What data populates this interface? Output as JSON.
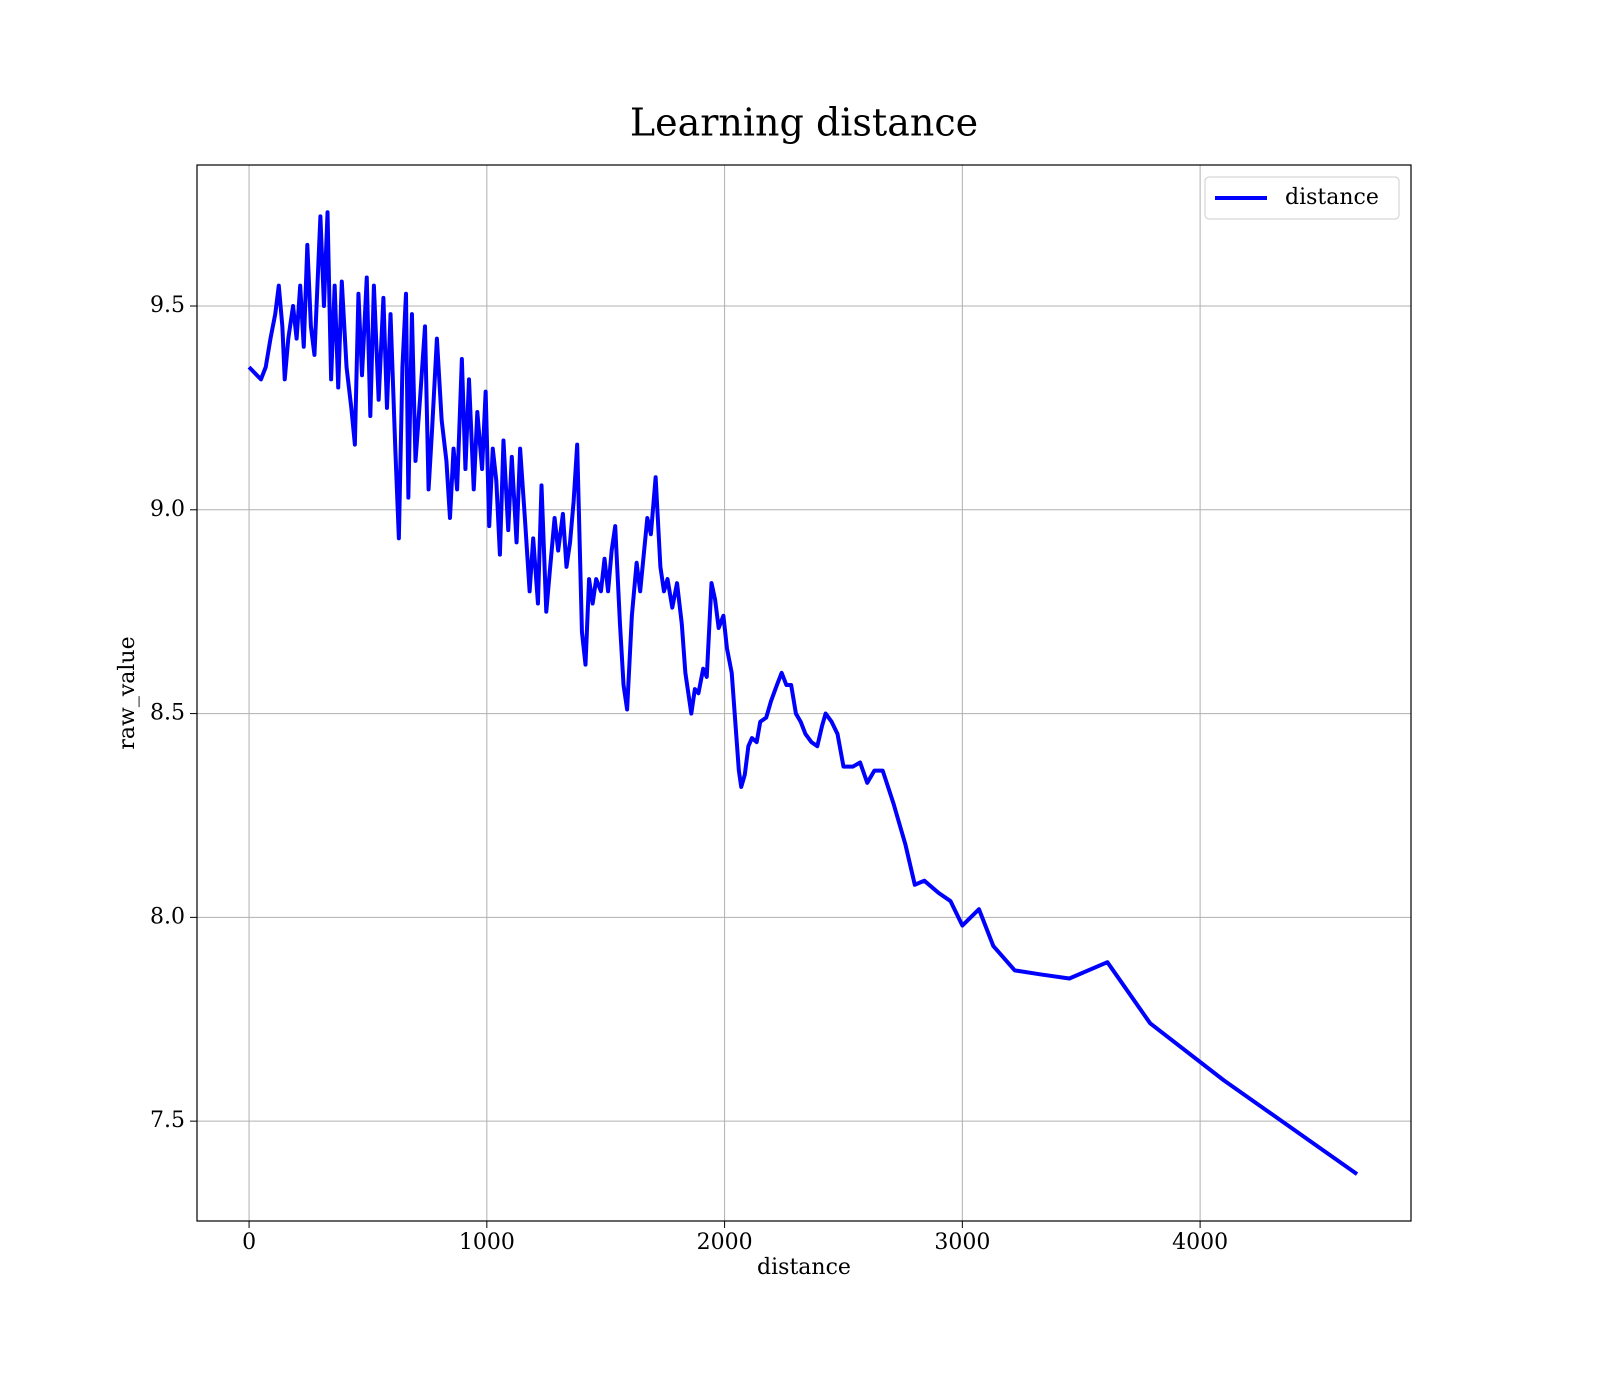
{
  "chart_data": {
    "type": "line",
    "title": "Learning distance",
    "x_label": "distance",
    "y_label": "raw_value",
    "x": [
      0,
      50,
      70,
      90,
      110,
      125,
      140,
      150,
      165,
      185,
      200,
      215,
      230,
      245,
      260,
      275,
      300,
      315,
      330,
      345,
      360,
      375,
      390,
      410,
      430,
      445,
      460,
      475,
      495,
      510,
      525,
      545,
      565,
      580,
      595,
      615,
      630,
      645,
      660,
      670,
      685,
      700,
      720,
      740,
      755,
      770,
      790,
      810,
      830,
      845,
      860,
      875,
      895,
      910,
      925,
      945,
      960,
      980,
      995,
      1010,
      1025,
      1040,
      1055,
      1070,
      1090,
      1105,
      1125,
      1140,
      1160,
      1180,
      1195,
      1215,
      1230,
      1250,
      1265,
      1285,
      1300,
      1320,
      1335,
      1350,
      1365,
      1380,
      1400,
      1415,
      1430,
      1445,
      1460,
      1480,
      1495,
      1510,
      1525,
      1540,
      1560,
      1575,
      1590,
      1610,
      1630,
      1645,
      1660,
      1675,
      1690,
      1710,
      1730,
      1745,
      1760,
      1780,
      1800,
      1820,
      1835,
      1860,
      1875,
      1890,
      1910,
      1925,
      1945,
      1960,
      1975,
      1995,
      2010,
      2030,
      2060,
      2070,
      2085,
      2100,
      2115,
      2135,
      2150,
      2175,
      2195,
      2220,
      2240,
      2260,
      2280,
      2300,
      2320,
      2340,
      2365,
      2390,
      2410,
      2425,
      2450,
      2475,
      2500,
      2540,
      2570,
      2600,
      2630,
      2665,
      2710,
      2760,
      2800,
      2840,
      2900,
      2950,
      3000,
      3070,
      3130,
      3220,
      3330,
      3450,
      3610,
      3790,
      4100,
      4660
    ],
    "series": [
      {
        "name": "distance",
        "color": "#0000ff",
        "values": [
          9.35,
          9.32,
          9.35,
          9.42,
          9.48,
          9.55,
          9.45,
          9.32,
          9.42,
          9.5,
          9.42,
          9.55,
          9.4,
          9.65,
          9.45,
          9.38,
          9.72,
          9.5,
          9.73,
          9.32,
          9.55,
          9.3,
          9.56,
          9.35,
          9.25,
          9.16,
          9.53,
          9.33,
          9.57,
          9.23,
          9.55,
          9.27,
          9.52,
          9.25,
          9.48,
          9.15,
          8.93,
          9.35,
          9.53,
          9.03,
          9.48,
          9.12,
          9.28,
          9.45,
          9.05,
          9.2,
          9.42,
          9.22,
          9.12,
          8.98,
          9.15,
          9.05,
          9.37,
          9.1,
          9.32,
          9.05,
          9.24,
          9.1,
          9.29,
          8.96,
          9.15,
          9.07,
          8.89,
          9.17,
          8.95,
          9.13,
          8.92,
          9.15,
          8.98,
          8.8,
          8.93,
          8.77,
          9.06,
          8.75,
          8.85,
          8.98,
          8.9,
          8.99,
          8.86,
          8.92,
          9.02,
          9.16,
          8.7,
          8.62,
          8.83,
          8.77,
          8.83,
          8.8,
          8.88,
          8.8,
          8.9,
          8.96,
          8.72,
          8.57,
          8.51,
          8.74,
          8.87,
          8.8,
          8.89,
          8.98,
          8.94,
          9.08,
          8.86,
          8.8,
          8.83,
          8.76,
          8.82,
          8.72,
          8.6,
          8.5,
          8.56,
          8.55,
          8.61,
          8.59,
          8.82,
          8.78,
          8.71,
          8.74,
          8.66,
          8.6,
          8.36,
          8.32,
          8.35,
          8.42,
          8.44,
          8.43,
          8.48,
          8.49,
          8.53,
          8.57,
          8.6,
          8.57,
          8.57,
          8.5,
          8.48,
          8.45,
          8.43,
          8.42,
          8.47,
          8.5,
          8.48,
          8.45,
          8.37,
          8.37,
          8.38,
          8.33,
          8.36,
          8.36,
          8.28,
          8.18,
          8.08,
          8.09,
          8.06,
          8.04,
          7.98,
          8.02,
          7.93,
          7.87,
          7.86,
          7.85,
          7.89,
          7.74,
          7.6,
          7.37
        ]
      }
    ],
    "xlim": [
      -219,
      4887
    ],
    "xticks": [
      0,
      1000,
      2000,
      3000,
      4000
    ],
    "ylim": [
      7.255,
      9.846
    ],
    "yticks": [
      7.5,
      {
        "value": 8,
        "label": "8.0"
      },
      8.5,
      {
        "value": 9,
        "label": "9.0"
      },
      9.5
    ],
    "grid": true,
    "legend": "upper right"
  }
}
